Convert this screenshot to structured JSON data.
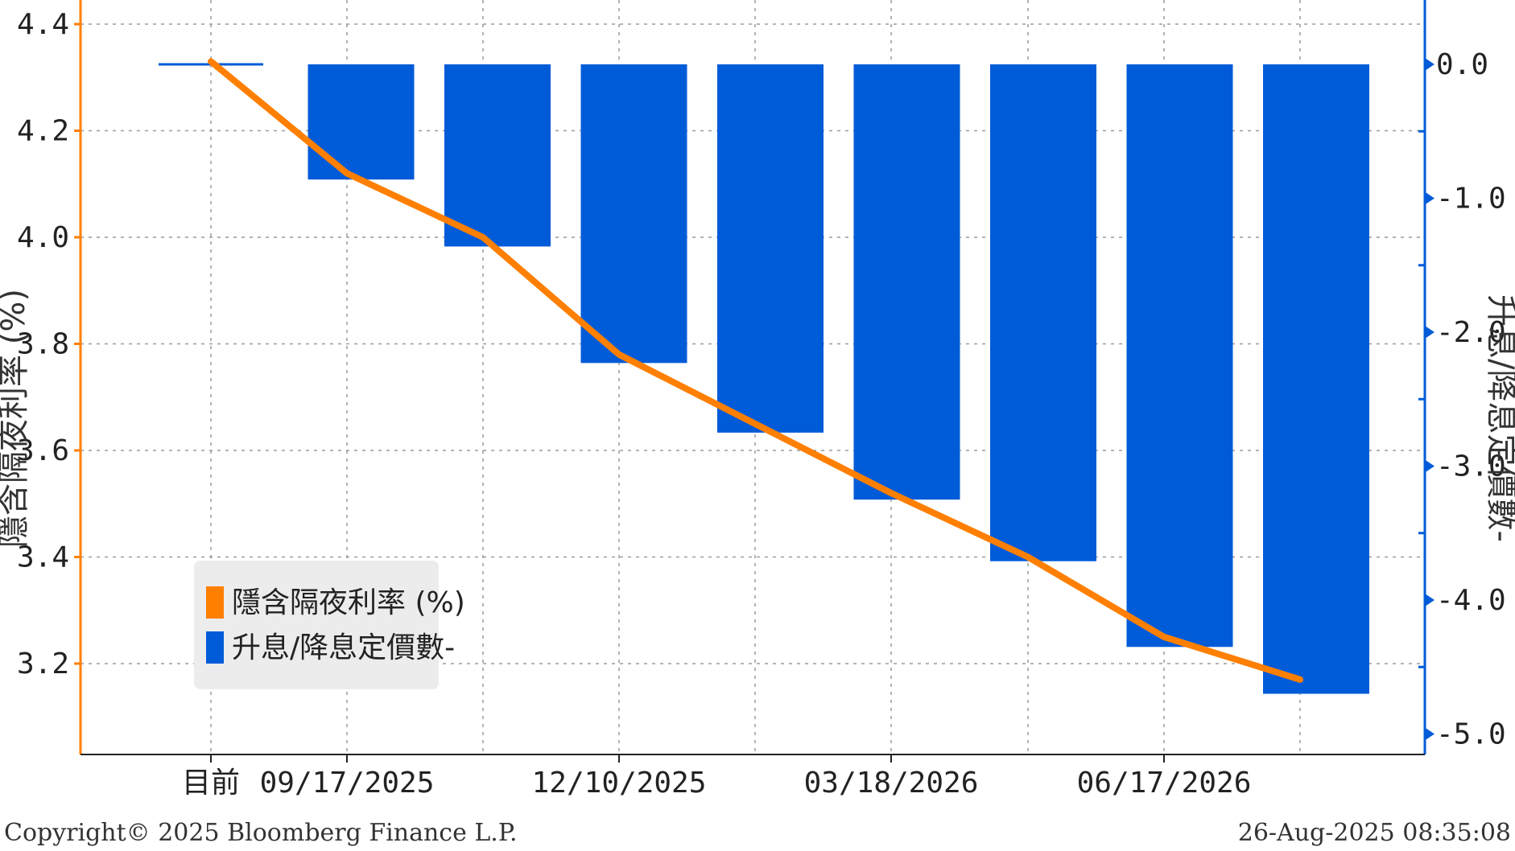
{
  "chart_data": {
    "type": "bar",
    "categories": [
      "目前",
      "09/17/2025",
      "",
      "12/10/2025",
      "",
      "03/18/2026",
      "",
      "06/17/2026",
      ""
    ],
    "x_tick_labels": [
      "目前",
      "09/17/2025",
      "12/10/2025",
      "03/18/2026",
      "06/17/2026"
    ],
    "series": [
      {
        "name": "升息/降息定價數-",
        "type": "bar",
        "axis": "right",
        "color": "#005bd8",
        "values": [
          0.0,
          -0.86,
          -1.36,
          -2.23,
          -2.75,
          -3.25,
          -3.71,
          -4.35,
          -4.7
        ]
      },
      {
        "name": "隱含隔夜利率 (%)",
        "type": "line",
        "axis": "left",
        "color": "#ff7f00",
        "values": [
          4.33,
          4.12,
          4.0,
          3.78,
          3.65,
          3.52,
          3.4,
          3.25,
          3.17
        ]
      }
    ],
    "y_left": {
      "label": "隱含隔夜利率 (%)",
      "range": [
        3.05,
        4.45
      ],
      "ticks": [
        "3.2",
        "3.4",
        "3.6",
        "3.8",
        "4.0",
        "4.2",
        "4.4"
      ],
      "color": "#ff7f00"
    },
    "y_right": {
      "label": "升息/降息定價數-",
      "range": [
        -5.15,
        0.48
      ],
      "ticks": [
        "0.0",
        "-1.0",
        "-2.0",
        "-3.0",
        "-4.0",
        "-5.0"
      ],
      "color": "#005bd8"
    },
    "grid": true,
    "legend": {
      "position": "bottom-left",
      "entries": [
        "隱含隔夜利率 (%)",
        "升息/降息定價數-"
      ]
    }
  },
  "footer": {
    "copyright": "Copyright© 2025 Bloomberg Finance L.P.",
    "timestamp": "26-Aug-2025 08:35:08"
  }
}
